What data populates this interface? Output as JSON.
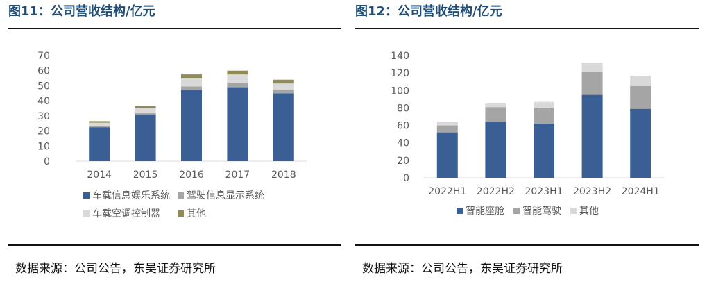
{
  "chart_data": [
    {
      "type": "bar",
      "stacked": true,
      "title": "图11：公司营收结构/亿元",
      "source": "数据来源：公司公告，东吴证券研究所",
      "categories": [
        "2014",
        "2015",
        "2016",
        "2017",
        "2018"
      ],
      "ylim": [
        0,
        70
      ],
      "yticks": [
        0,
        10,
        20,
        30,
        40,
        50,
        60,
        70
      ],
      "grid": false,
      "legend_position": "bottom",
      "series": [
        {
          "name": "车载信息娱乐系统",
          "color": "#3a5f94",
          "values": [
            22.5,
            31,
            47,
            49,
            45
          ]
        },
        {
          "name": "驾驶信息显示系统",
          "color": "#a5a5a5",
          "values": [
            1,
            1,
            2.5,
            3,
            2.5
          ]
        },
        {
          "name": "车载空调控制器",
          "color": "#d9d9d9",
          "values": [
            2,
            3,
            5.5,
            5.5,
            4
          ]
        },
        {
          "name": "其他",
          "color": "#8f8a56",
          "values": [
            1,
            1.5,
            2.5,
            2.5,
            2.5
          ]
        }
      ]
    },
    {
      "type": "bar",
      "stacked": true,
      "title": "图12：公司营收结构/亿元",
      "source": "数据来源：公司公告，东吴证券研究所",
      "categories": [
        "2022H1",
        "2022H2",
        "2023H1",
        "2023H2",
        "2024H1"
      ],
      "ylim": [
        0,
        140
      ],
      "yticks": [
        0,
        20,
        40,
        60,
        80,
        100,
        120,
        140
      ],
      "grid": false,
      "legend_position": "bottom",
      "series": [
        {
          "name": "智能座舱",
          "color": "#3a5f94",
          "values": [
            52,
            64,
            62,
            95,
            79
          ]
        },
        {
          "name": "智能驾驶",
          "color": "#a5a5a5",
          "values": [
            8,
            17,
            18,
            26,
            26
          ]
        },
        {
          "name": "其他",
          "color": "#d9d9d9",
          "values": [
            4,
            4,
            7,
            11,
            12
          ]
        }
      ]
    }
  ]
}
